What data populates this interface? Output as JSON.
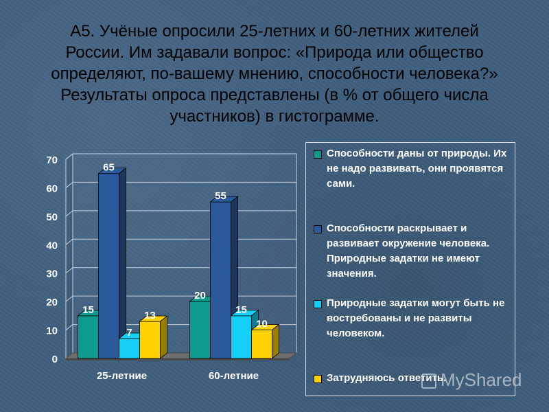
{
  "title": {
    "lines": [
      "А5. Учёные опросили 25-летних и 60-летних жителей",
      "России. Им задавали вопрос: «Природа или общество",
      "определяют, по-вашему мнению, способности человека?»",
      "Результаты опроса представлены (в % от общего числа",
      "участников) в гистограмме."
    ]
  },
  "chart_data": {
    "type": "bar",
    "categories": [
      "25-летние",
      "60-летние"
    ],
    "series": [
      {
        "name": "Способности даны от природы. Их не надо развивать, они проявятся сами.",
        "values": [
          15,
          20
        ],
        "color": "#0e9a8c"
      },
      {
        "name": "Способности раскрывает и развивает окружение человека. Природные задатки не имеют значения.",
        "values": [
          65,
          55
        ],
        "color": "#2b5a9b"
      },
      {
        "name": "Природные задатки могут быть не востребованы и не развиты человеком.",
        "values": [
          7,
          15
        ],
        "color": "#15cff7"
      },
      {
        "name": "Затрудняюсь ответить.",
        "values": [
          13,
          10
        ],
        "color": "#ffd200"
      }
    ],
    "ylim": [
      0,
      70
    ],
    "yticks": [
      "0",
      "10",
      "20",
      "30",
      "40",
      "50",
      "60",
      "70"
    ],
    "grid": true,
    "legend_position": "right",
    "xlabel": "",
    "ylabel": ""
  },
  "watermark": {
    "text": "MyShared"
  }
}
